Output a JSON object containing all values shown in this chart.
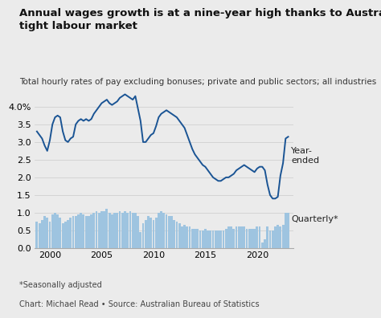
{
  "title": "Annual wages growth is at a nine-year high thanks to Australia’s incredibly\ntight labour market",
  "subtitle": "Total hourly rates of pay excluding bonuses; private and public sectors; all industries",
  "footnote1": "*Seasonally adjusted",
  "footnote2": "Chart: Michael Read • Source: Australian Bureau of Statistics",
  "background_color": "#ebebeb",
  "line_color": "#1a5494",
  "bar_color": "#9ec4e0",
  "label_year_ended": "Year-\nended",
  "label_quarterly": "Quarterly*",
  "year_ended_x": [
    1998.75,
    1999.0,
    1999.25,
    1999.5,
    1999.75,
    2000.0,
    2000.25,
    2000.5,
    2000.75,
    2001.0,
    2001.25,
    2001.5,
    2001.75,
    2002.0,
    2002.25,
    2002.5,
    2002.75,
    2003.0,
    2003.25,
    2003.5,
    2003.75,
    2004.0,
    2004.25,
    2004.5,
    2004.75,
    2005.0,
    2005.25,
    2005.5,
    2005.75,
    2006.0,
    2006.25,
    2006.5,
    2006.75,
    2007.0,
    2007.25,
    2007.5,
    2007.75,
    2008.0,
    2008.25,
    2008.5,
    2008.75,
    2009.0,
    2009.25,
    2009.5,
    2009.75,
    2010.0,
    2010.25,
    2010.5,
    2010.75,
    2011.0,
    2011.25,
    2011.5,
    2011.75,
    2012.0,
    2012.25,
    2012.5,
    2012.75,
    2013.0,
    2013.25,
    2013.5,
    2013.75,
    2014.0,
    2014.25,
    2014.5,
    2014.75,
    2015.0,
    2015.25,
    2015.5,
    2015.75,
    2016.0,
    2016.25,
    2016.5,
    2016.75,
    2017.0,
    2017.25,
    2017.5,
    2017.75,
    2018.0,
    2018.25,
    2018.5,
    2018.75,
    2019.0,
    2019.25,
    2019.5,
    2019.75,
    2020.0,
    2020.25,
    2020.5,
    2020.75,
    2021.0,
    2021.25,
    2021.5,
    2021.75,
    2022.0,
    2022.25,
    2022.5,
    2022.75,
    2023.0
  ],
  "year_ended_y": [
    3.3,
    3.2,
    3.1,
    2.9,
    2.75,
    3.05,
    3.5,
    3.7,
    3.75,
    3.7,
    3.3,
    3.05,
    3.0,
    3.1,
    3.15,
    3.5,
    3.6,
    3.65,
    3.6,
    3.65,
    3.6,
    3.65,
    3.8,
    3.9,
    4.0,
    4.1,
    4.15,
    4.2,
    4.1,
    4.05,
    4.1,
    4.15,
    4.25,
    4.3,
    4.35,
    4.3,
    4.25,
    4.2,
    4.3,
    3.95,
    3.6,
    3.0,
    3.0,
    3.1,
    3.2,
    3.25,
    3.45,
    3.7,
    3.8,
    3.85,
    3.9,
    3.85,
    3.8,
    3.75,
    3.7,
    3.6,
    3.5,
    3.4,
    3.2,
    3.0,
    2.8,
    2.65,
    2.55,
    2.45,
    2.35,
    2.3,
    2.2,
    2.1,
    2.0,
    1.95,
    1.9,
    1.9,
    1.95,
    2.0,
    2.0,
    2.05,
    2.1,
    2.2,
    2.25,
    2.3,
    2.35,
    2.3,
    2.25,
    2.2,
    2.15,
    2.25,
    2.3,
    2.3,
    2.2,
    1.8,
    1.5,
    1.4,
    1.4,
    1.45,
    2.05,
    2.4,
    3.1,
    3.15
  ],
  "quarterly_x": [
    1998.75,
    1999.0,
    1999.25,
    1999.5,
    1999.75,
    2000.0,
    2000.25,
    2000.5,
    2000.75,
    2001.0,
    2001.25,
    2001.5,
    2001.75,
    2002.0,
    2002.25,
    2002.5,
    2002.75,
    2003.0,
    2003.25,
    2003.5,
    2003.75,
    2004.0,
    2004.25,
    2004.5,
    2004.75,
    2005.0,
    2005.25,
    2005.5,
    2005.75,
    2006.0,
    2006.25,
    2006.5,
    2006.75,
    2007.0,
    2007.25,
    2007.5,
    2007.75,
    2008.0,
    2008.25,
    2008.5,
    2008.75,
    2009.0,
    2009.25,
    2009.5,
    2009.75,
    2010.0,
    2010.25,
    2010.5,
    2010.75,
    2011.0,
    2011.25,
    2011.5,
    2011.75,
    2012.0,
    2012.25,
    2012.5,
    2012.75,
    2013.0,
    2013.25,
    2013.5,
    2013.75,
    2014.0,
    2014.25,
    2014.5,
    2014.75,
    2015.0,
    2015.25,
    2015.5,
    2015.75,
    2016.0,
    2016.25,
    2016.5,
    2016.75,
    2017.0,
    2017.25,
    2017.5,
    2017.75,
    2018.0,
    2018.25,
    2018.5,
    2018.75,
    2019.0,
    2019.25,
    2019.5,
    2019.75,
    2020.0,
    2020.25,
    2020.5,
    2020.75,
    2021.0,
    2021.25,
    2021.5,
    2021.75,
    2022.0,
    2022.25,
    2022.5,
    2022.75,
    2023.0
  ],
  "quarterly_y": [
    0.75,
    0.7,
    0.8,
    0.9,
    0.85,
    0.75,
    0.95,
    1.0,
    0.95,
    0.85,
    0.7,
    0.75,
    0.8,
    0.85,
    0.9,
    0.9,
    0.95,
    1.0,
    0.95,
    0.9,
    0.9,
    0.95,
    1.0,
    1.05,
    1.0,
    1.05,
    1.05,
    1.1,
    1.0,
    0.95,
    1.0,
    1.0,
    1.05,
    1.0,
    1.05,
    1.0,
    1.05,
    1.0,
    1.0,
    0.9,
    0.45,
    0.7,
    0.8,
    0.9,
    0.85,
    0.8,
    0.85,
    1.0,
    1.05,
    1.0,
    0.95,
    0.9,
    0.9,
    0.8,
    0.75,
    0.7,
    0.6,
    0.65,
    0.6,
    0.6,
    0.55,
    0.55,
    0.55,
    0.5,
    0.5,
    0.55,
    0.5,
    0.5,
    0.5,
    0.5,
    0.5,
    0.5,
    0.5,
    0.55,
    0.6,
    0.6,
    0.55,
    0.6,
    0.6,
    0.6,
    0.6,
    0.55,
    0.55,
    0.55,
    0.55,
    0.6,
    0.6,
    0.15,
    0.25,
    0.6,
    0.5,
    0.5,
    0.6,
    0.65,
    0.6,
    0.65,
    1.0,
    1.0
  ],
  "xlim": [
    1998.5,
    2023.5
  ],
  "ylim": [
    0.0,
    4.5
  ],
  "yticks": [
    0.0,
    0.5,
    1.0,
    1.5,
    2.0,
    2.5,
    3.0,
    3.5,
    4.0
  ],
  "xticks": [
    2000,
    2005,
    2010,
    2015,
    2020
  ],
  "title_fontsize": 9.5,
  "subtitle_fontsize": 7.5,
  "tick_fontsize": 8,
  "annot_fontsize": 8,
  "footnote_fontsize": 7
}
